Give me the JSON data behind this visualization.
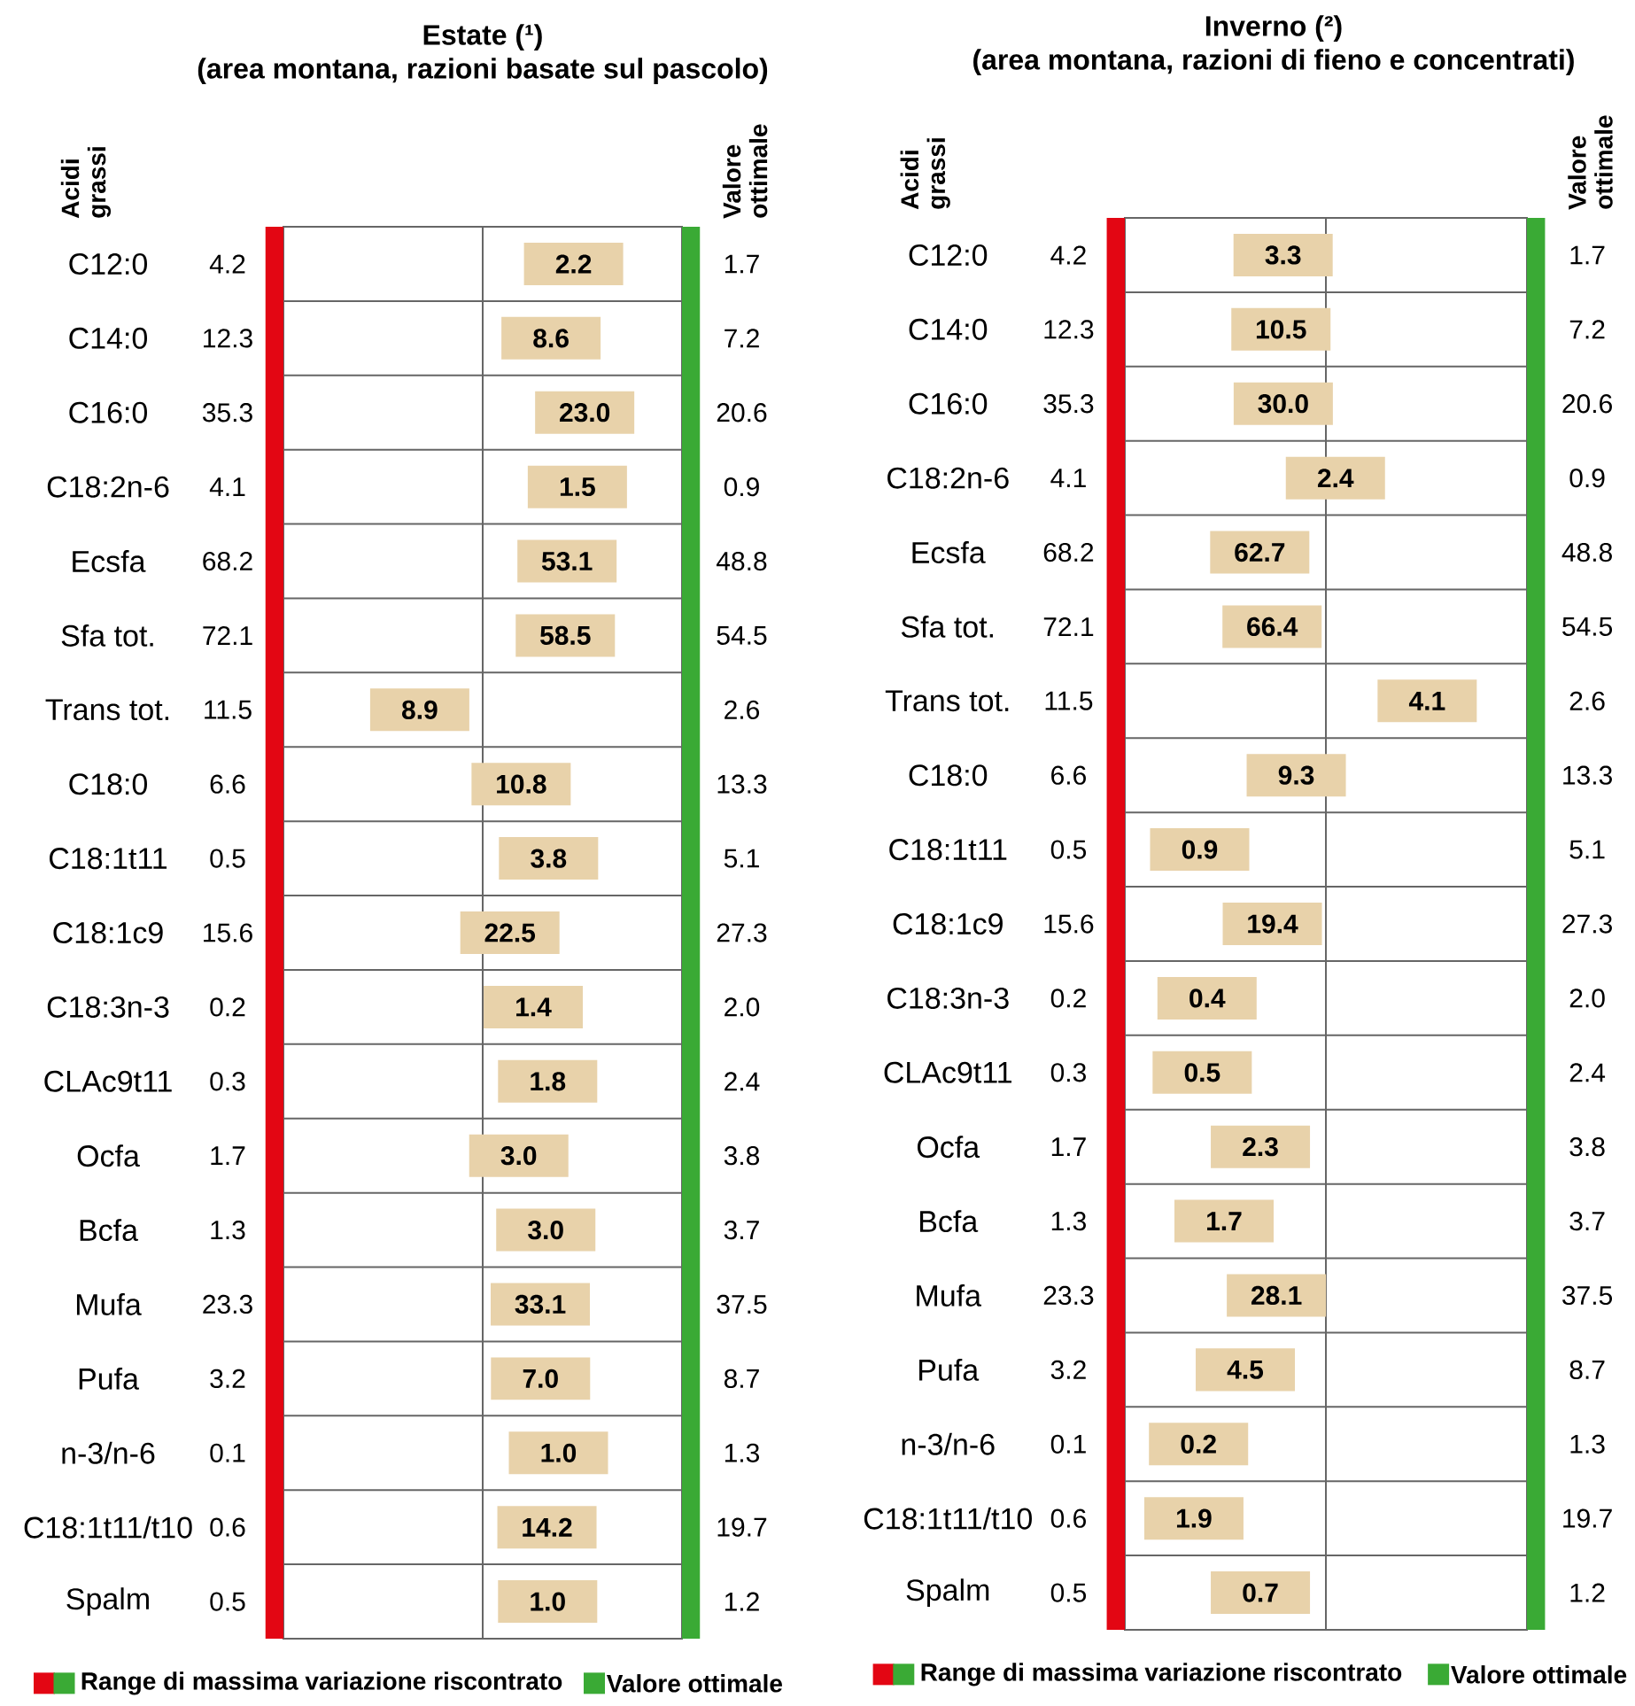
{
  "chart_data": [
    {
      "type": "other",
      "title": "Estate (¹)",
      "subtitle": "(area montana, razioni basate sul pascolo)",
      "annotations": [
        "Acidi grassi",
        "Valore ottimale"
      ],
      "legend": "bottom",
      "categories": [
        "C12:0",
        "C14:0",
        "C16:0",
        "C18:2n-6",
        "Ecsfa",
        "Sfa tot.",
        "Trans tot.",
        "C18:0",
        "C18:1t11",
        "C18:1c9",
        "C18:3n-3",
        "CLAc9t11",
        "Ocfa",
        "Bcfa",
        "Mufa",
        "Pufa",
        "n-3/n-6",
        "C18:1t11/t10",
        "Spalm"
      ],
      "series": [
        {
          "name": "Range di massima variazione riscontrato",
          "color": "#e30613",
          "values": [
            4.2,
            12.3,
            35.3,
            4.1,
            68.2,
            72.1,
            11.5,
            6.6,
            0.5,
            15.6,
            0.2,
            0.3,
            1.7,
            1.3,
            23.3,
            3.2,
            0.1,
            0.6,
            0.5
          ],
          "value_labels": [
            "4.2",
            "12.3",
            "35.3",
            "4.1",
            "68.2",
            "72.1",
            "11.5",
            "6.6",
            "0.5",
            "15.6",
            "0.2",
            "0.3",
            "1.7",
            "1.3",
            "23.3",
            "3.2",
            "0.1",
            "0.6",
            "0.5"
          ]
        },
        {
          "color": "#e8d2aa",
          "values": [
            2.2,
            8.6,
            23.0,
            1.5,
            53.1,
            58.5,
            8.9,
            10.8,
            3.8,
            22.5,
            1.4,
            1.8,
            3.0,
            3.0,
            33.1,
            7.0,
            1.0,
            14.2,
            1.0
          ],
          "value_labels": [
            "2.2",
            "8.6",
            "23.0",
            "1.5",
            "53.1",
            "58.5",
            "8.9",
            "10.8",
            "3.8",
            "22.5",
            "1.4",
            "1.8",
            "3.0",
            "3.0",
            "33.1",
            "7.0",
            "1.0",
            "14.2",
            "1.0"
          ]
        },
        {
          "name": "Valore ottimale",
          "color": "#3aaa35",
          "values": [
            1.7,
            7.2,
            20.6,
            0.9,
            48.8,
            54.5,
            2.6,
            13.3,
            5.1,
            27.3,
            2.0,
            2.4,
            3.8,
            3.7,
            37.5,
            8.7,
            1.3,
            19.7,
            1.2
          ],
          "value_labels": [
            "1.7",
            "7.2",
            "20.6",
            "0.9",
            "48.8",
            "54.5",
            "2.6",
            "13.3",
            "5.1",
            "27.3",
            "2.0",
            "2.4",
            "3.8",
            "3.7",
            "37.5",
            "8.7",
            "1.3",
            "19.7",
            "1.2"
          ]
        }
      ]
    },
    {
      "type": "other",
      "title": "Inverno (²)",
      "subtitle": "(area montana, razioni di fieno e concentrati)",
      "annotations": [
        "Acidi grassi",
        "Valore ottimale"
      ],
      "legend": "bottom",
      "categories": [
        "C12:0",
        "C14:0",
        "C16:0",
        "C18:2n-6",
        "Ecsfa",
        "Sfa tot.",
        "Trans tot.",
        "C18:0",
        "C18:1t11",
        "C18:1c9",
        "C18:3n-3",
        "CLAc9t11",
        "Ocfa",
        "Bcfa",
        "Mufa",
        "Pufa",
        "n-3/n-6",
        "C18:1t11/t10",
        "Spalm"
      ],
      "series": [
        {
          "name": "Range di massima variazione riscontrato",
          "color": "#e30613",
          "values": [
            4.2,
            12.3,
            35.3,
            4.1,
            68.2,
            72.1,
            11.5,
            6.6,
            0.5,
            15.6,
            0.2,
            0.3,
            1.7,
            1.3,
            23.3,
            3.2,
            0.1,
            0.6,
            0.5
          ],
          "value_labels": [
            "4.2",
            "12.3",
            "35.3",
            "4.1",
            "68.2",
            "72.1",
            "11.5",
            "6.6",
            "0.5",
            "15.6",
            "0.2",
            "0.3",
            "1.7",
            "1.3",
            "23.3",
            "3.2",
            "0.1",
            "0.6",
            "0.5"
          ]
        },
        {
          "color": "#e8d2aa",
          "values": [
            3.3,
            10.5,
            30.0,
            2.4,
            62.7,
            66.4,
            4.1,
            9.3,
            0.9,
            19.4,
            0.4,
            0.5,
            2.3,
            1.7,
            28.1,
            4.5,
            0.2,
            1.9,
            0.7
          ],
          "value_labels": [
            "3.3",
            "10.5",
            "30.0",
            "2.4",
            "62.7",
            "66.4",
            "4.1",
            "9.3",
            "0.9",
            "19.4",
            "0.4",
            "0.5",
            "2.3",
            "1.7",
            "28.1",
            "4.5",
            "0.2",
            "1.9",
            "0.7"
          ]
        },
        {
          "name": "Valore ottimale",
          "color": "#3aaa35",
          "values": [
            1.7,
            7.2,
            20.6,
            0.9,
            48.8,
            54.5,
            2.6,
            13.3,
            5.1,
            27.3,
            2.0,
            2.4,
            3.8,
            3.7,
            37.5,
            8.7,
            1.3,
            19.7,
            1.2
          ],
          "value_labels": [
            "1.7",
            "7.2",
            "20.6",
            "0.9",
            "48.8",
            "54.5",
            "2.6",
            "13.3",
            "5.1",
            "27.3",
            "2.0",
            "2.4",
            "3.8",
            "3.7",
            "37.5",
            "8.7",
            "1.3",
            "19.7",
            "1.2"
          ]
        }
      ]
    }
  ]
}
